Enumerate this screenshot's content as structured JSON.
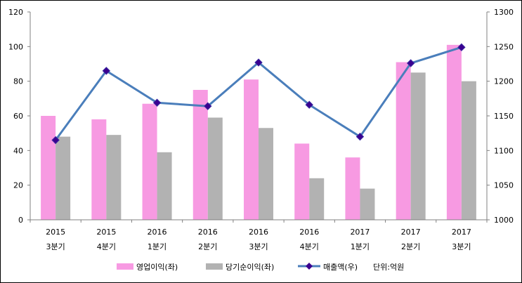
{
  "chart_data": {
    "type": "bar",
    "categories": [
      [
        "2015",
        "3분기"
      ],
      [
        "2015",
        "4분기"
      ],
      [
        "2016",
        "1분기"
      ],
      [
        "2016",
        "2분기"
      ],
      [
        "2016",
        "3분기"
      ],
      [
        "2016",
        "4분기"
      ],
      [
        "2017",
        "1분기"
      ],
      [
        "2017",
        "2분기"
      ],
      [
        "2017",
        "3분기"
      ]
    ],
    "series": [
      {
        "name": "영업이익(좌)",
        "type": "bar",
        "axis": "left",
        "color": "#f79ae2",
        "values": [
          60,
          58,
          67,
          75,
          81,
          44,
          36,
          91,
          101
        ]
      },
      {
        "name": "당기순이익(좌)",
        "type": "bar",
        "axis": "left",
        "color": "#b2b2b2",
        "values": [
          48,
          49,
          39,
          59,
          53,
          24,
          18,
          85,
          80
        ]
      },
      {
        "name": "매출액(우)",
        "type": "line",
        "axis": "right",
        "color": "#4a7ebb",
        "marker_color": "#3a0090",
        "values": [
          1115,
          1215,
          1169,
          1164,
          1227,
          1166,
          1120,
          1226,
          1249
        ]
      }
    ],
    "ylim": [
      0,
      120
    ],
    "yticks": [
      0,
      20,
      40,
      60,
      80,
      100,
      120
    ],
    "y2lim": [
      1000,
      1300
    ],
    "y2ticks": [
      1000,
      1050,
      1100,
      1150,
      1200,
      1250,
      1300
    ],
    "unit_note": "단위:억원",
    "legend_position": "bottom",
    "grid": false
  }
}
